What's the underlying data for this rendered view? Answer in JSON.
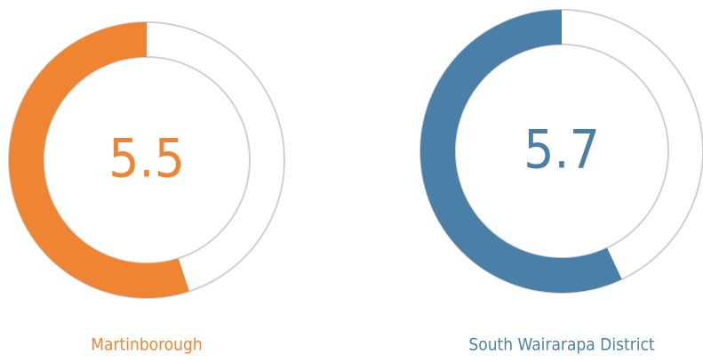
{
  "chart_data": [
    {
      "type": "gauge",
      "title": "Martinborough",
      "value": 5.5,
      "color": "#ef8433",
      "ylim": [
        0,
        10
      ]
    },
    {
      "type": "gauge",
      "title": "South Wairarapa District",
      "value": 5.7,
      "color": "#4a80a8",
      "ylim": [
        0,
        10
      ]
    }
  ]
}
